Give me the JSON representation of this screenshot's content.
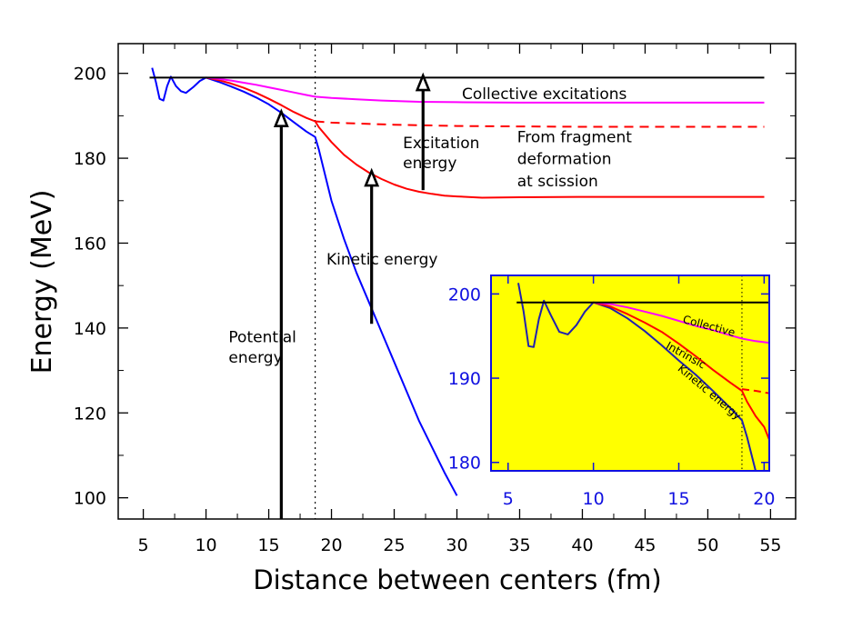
{
  "chart_data": [
    {
      "type": "line",
      "xlabel": "Distance between centers (fm)",
      "ylabel": "Energy (MeV)",
      "xlim": [
        3,
        57
      ],
      "ylim": [
        95,
        207
      ],
      "xticks": [
        5,
        10,
        15,
        20,
        25,
        30,
        35,
        40,
        45,
        50,
        55
      ],
      "yticks": [
        100,
        120,
        140,
        160,
        180,
        200
      ],
      "grid": false,
      "scission_line_x": 18.7,
      "series": [
        {
          "color": "#0000ff",
          "style": "solid",
          "points": [
            [
              5.7,
              201.3
            ],
            [
              6.0,
              198
            ],
            [
              6.3,
              194
            ],
            [
              6.6,
              193.6
            ],
            [
              6.9,
              197
            ],
            [
              7.2,
              199.2
            ],
            [
              7.6,
              197
            ],
            [
              8.0,
              195.8
            ],
            [
              8.4,
              195.4
            ],
            [
              9.0,
              196.8
            ],
            [
              9.5,
              198.2
            ],
            [
              10.0,
              199
            ],
            [
              11,
              198
            ],
            [
              12,
              196.9
            ],
            [
              13,
              195.7
            ],
            [
              14,
              194.3
            ],
            [
              15,
              192.7
            ],
            [
              16,
              190.7
            ],
            [
              17,
              188.5
            ],
            [
              18,
              186.3
            ],
            [
              18.7,
              185
            ],
            [
              19,
              182
            ],
            [
              20,
              170
            ],
            [
              21,
              161
            ],
            [
              22,
              153
            ],
            [
              23,
              146
            ],
            [
              24,
              139
            ],
            [
              25,
              132
            ],
            [
              26,
              125
            ],
            [
              27,
              118
            ],
            [
              28,
              112
            ],
            [
              29,
              106
            ],
            [
              30,
              100.5
            ]
          ]
        },
        {
          "color": "#ff0000",
          "style": "solid",
          "points": [
            [
              10,
              199
            ],
            [
              11,
              198.4
            ],
            [
              12,
              197.6
            ],
            [
              13,
              196.6
            ],
            [
              14,
              195.4
            ],
            [
              15,
              194
            ],
            [
              16,
              192.5
            ],
            [
              17,
              190.9
            ],
            [
              18,
              189.5
            ],
            [
              18.7,
              188.7
            ],
            [
              19,
              187.3
            ],
            [
              20,
              183.8
            ],
            [
              21,
              180.8
            ],
            [
              22,
              178.5
            ],
            [
              23,
              176.6
            ],
            [
              24,
              175.1
            ],
            [
              25,
              173.8
            ],
            [
              26,
              172.8
            ],
            [
              27,
              172.1
            ],
            [
              28,
              171.6
            ],
            [
              29,
              171.2
            ],
            [
              30,
              171
            ],
            [
              32,
              170.7
            ],
            [
              35,
              170.8
            ],
            [
              40,
              170.9
            ],
            [
              45,
              170.9
            ],
            [
              50,
              170.9
            ],
            [
              54.5,
              170.9
            ]
          ]
        },
        {
          "color": "#ff0000",
          "style": "dashed",
          "points": [
            [
              18.7,
              188.7
            ],
            [
              20,
              188.4
            ],
            [
              25,
              187.9
            ],
            [
              30,
              187.6
            ],
            [
              35,
              187.5
            ],
            [
              40,
              187.4
            ],
            [
              45,
              187.4
            ],
            [
              50,
              187.4
            ],
            [
              54.5,
              187.4
            ]
          ]
        },
        {
          "color": "#ff00ff",
          "style": "solid",
          "points": [
            [
              10,
              199
            ],
            [
              11,
              198.7
            ],
            [
              12,
              198.3
            ],
            [
              13,
              197.8
            ],
            [
              14,
              197.3
            ],
            [
              15,
              196.7
            ],
            [
              16,
              196.1
            ],
            [
              17,
              195.5
            ],
            [
              18,
              194.9
            ],
            [
              18.7,
              194.5
            ],
            [
              20,
              194.2
            ],
            [
              22,
              193.9
            ],
            [
              24,
              193.6
            ],
            [
              27,
              193.3
            ],
            [
              30,
              193.2
            ],
            [
              35,
              193.1
            ],
            [
              40,
              193.1
            ],
            [
              45,
              193.1
            ],
            [
              50,
              193.1
            ],
            [
              54.5,
              193.1
            ]
          ]
        },
        {
          "color": "#000000",
          "style": "solid",
          "points": [
            [
              5.5,
              199
            ],
            [
              54.5,
              199
            ]
          ]
        }
      ],
      "arrows": [
        {
          "x": 16.0,
          "from": 95,
          "to": 191
        },
        {
          "x": 23.2,
          "from": 141,
          "to": 177
        },
        {
          "x": 27.3,
          "from": 172.5,
          "to": 199.5
        }
      ],
      "annotations": [
        {
          "text": "Collective excitations",
          "x": 30.4,
          "y": 193.9
        },
        {
          "text": "Excitation",
          "x": 25.7,
          "y": 182.4
        },
        {
          "text": "energy",
          "x": 25.7,
          "y": 177.7
        },
        {
          "text": "From fragment",
          "x": 34.8,
          "y": 183.8
        },
        {
          "text": "deformation",
          "x": 34.8,
          "y": 178.6
        },
        {
          "text": "at scission",
          "x": 34.8,
          "y": 173.4
        },
        {
          "text": "Kinetic energy",
          "x": 19.6,
          "y": 155.0
        },
        {
          "text": "Potential",
          "x": 11.8,
          "y": 136.6
        },
        {
          "text": "energy",
          "x": 11.8,
          "y": 131.8
        }
      ]
    },
    {
      "type": "line",
      "xlim": [
        4,
        20.3
      ],
      "ylim": [
        179,
        202.2
      ],
      "xticks": [
        5,
        10,
        15,
        20
      ],
      "yticks": [
        180,
        190,
        200
      ],
      "background": "#ffff00",
      "frame_color": "#1010e0",
      "scission_line_x": 18.7,
      "series": [
        {
          "color": "#2020b0",
          "style": "solid",
          "points": [
            [
              5.6,
              201.3
            ],
            [
              5.9,
              198
            ],
            [
              6.2,
              193.8
            ],
            [
              6.5,
              193.7
            ],
            [
              6.8,
              197
            ],
            [
              7.1,
              199.2
            ],
            [
              7.5,
              197.5
            ],
            [
              8.0,
              195.5
            ],
            [
              8.5,
              195.2
            ],
            [
              9.0,
              196.3
            ],
            [
              9.5,
              197.9
            ],
            [
              10,
              199
            ],
            [
              11,
              198.3
            ],
            [
              12,
              197.1
            ],
            [
              13,
              195.6
            ],
            [
              14,
              193.9
            ],
            [
              15,
              192.1
            ],
            [
              16,
              190.4
            ],
            [
              17,
              188.5
            ],
            [
              18,
              186.5
            ],
            [
              18.7,
              185
            ],
            [
              19,
              183
            ],
            [
              19.5,
              179
            ]
          ]
        },
        {
          "color": "#ff0000",
          "style": "solid",
          "points": [
            [
              10,
              199
            ],
            [
              11,
              198.5
            ],
            [
              12,
              197.6
            ],
            [
              13,
              196.6
            ],
            [
              14,
              195.5
            ],
            [
              15,
              194.1
            ],
            [
              16,
              192.6
            ],
            [
              17,
              191
            ],
            [
              18,
              189.5
            ],
            [
              18.7,
              188.5
            ],
            [
              19,
              187.2
            ],
            [
              19.5,
              185.5
            ],
            [
              20,
              184.2
            ],
            [
              20.3,
              182.7
            ]
          ]
        },
        {
          "color": "#ff0000",
          "style": "dashed",
          "points": [
            [
              18.7,
              188.7
            ],
            [
              19.5,
              188.5
            ],
            [
              20.3,
              188.2
            ]
          ]
        },
        {
          "color": "#ff00ff",
          "style": "solid",
          "points": [
            [
              10,
              199
            ],
            [
              11,
              198.8
            ],
            [
              12,
              198.4
            ],
            [
              13,
              197.9
            ],
            [
              14,
              197.4
            ],
            [
              15,
              196.8
            ],
            [
              16,
              196.2
            ],
            [
              17,
              195.7
            ],
            [
              18,
              195.1
            ],
            [
              18.7,
              194.7
            ],
            [
              19.5,
              194.4
            ],
            [
              20.3,
              194.2
            ]
          ]
        },
        {
          "color": "#000000",
          "style": "solid",
          "points": [
            [
              5.5,
              199
            ],
            [
              20.3,
              199
            ]
          ]
        }
      ],
      "annotations": [
        {
          "text": "Collective",
          "x": 15.2,
          "y": 196.6,
          "angle": 15
        },
        {
          "text": "Intrinsic",
          "x": 14.2,
          "y": 193.6,
          "angle": 29
        },
        {
          "text": "Kinetic energy",
          "x": 14.9,
          "y": 191.0,
          "angle": 40
        }
      ]
    }
  ]
}
